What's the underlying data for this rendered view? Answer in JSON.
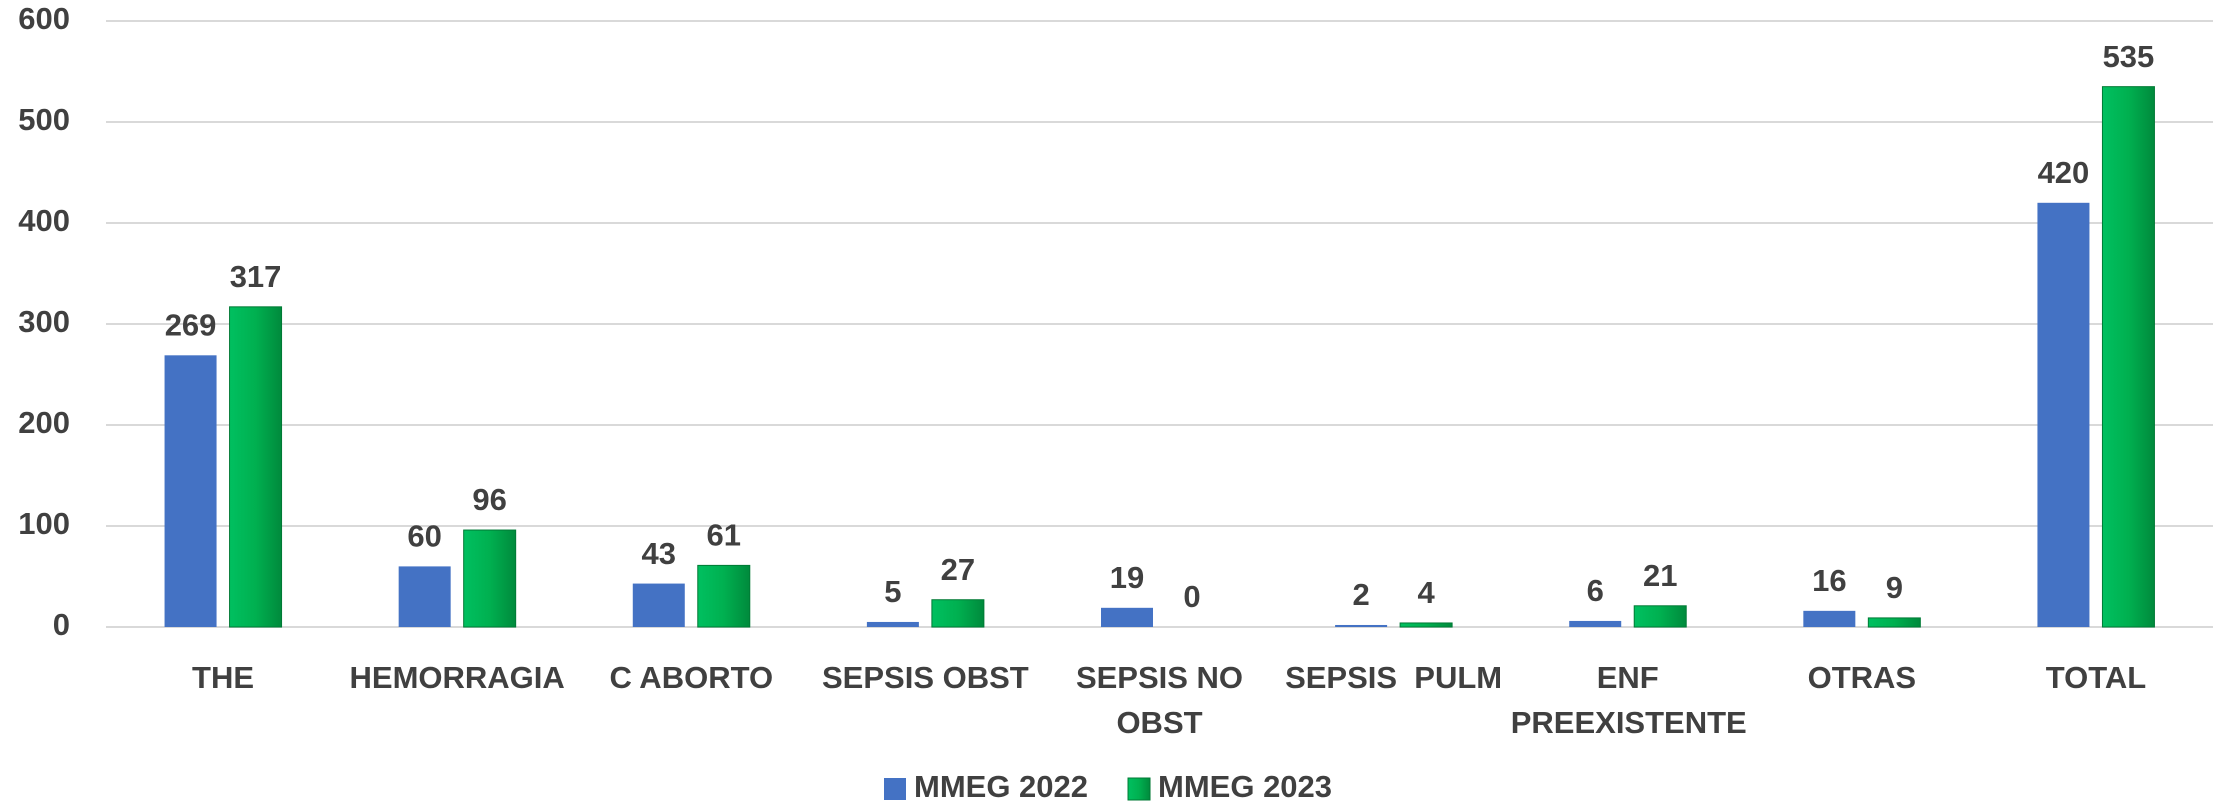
{
  "chart_data": {
    "type": "bar",
    "categories": [
      "THE",
      "HEMORRAGIA",
      "C ABORTO",
      "SEPSIS OBST",
      "SEPSIS NO OBST",
      "SEPSIS  PULM",
      "ENF PREEXISTENTE",
      "OTRAS",
      "TOTAL"
    ],
    "series": [
      {
        "name": "MMEG 2022",
        "color": "#4472c4",
        "values": [
          269,
          60,
          43,
          5,
          19,
          2,
          6,
          16,
          420
        ]
      },
      {
        "name": "MMEG 2023",
        "color": "#00b050",
        "values": [
          317,
          96,
          61,
          27,
          0,
          4,
          21,
          9,
          535
        ]
      }
    ],
    "ylim": [
      0,
      600
    ],
    "yticks": [
      0,
      100,
      200,
      300,
      400,
      500,
      600
    ],
    "grid": true,
    "legend": "bottom"
  }
}
